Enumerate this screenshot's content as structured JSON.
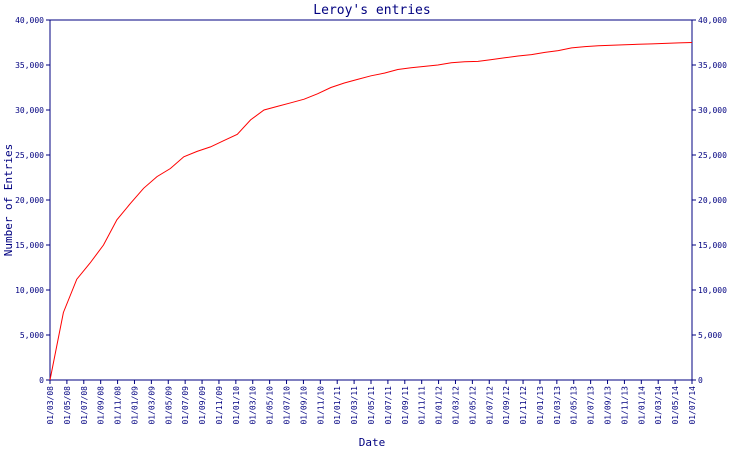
{
  "chart_data": {
    "type": "line",
    "title": "Leroy's entries",
    "xlabel": "Date",
    "ylabel": "Number of Entries",
    "ylim": [
      0,
      40000
    ],
    "y_ticks": [
      0,
      5000,
      10000,
      15000,
      20000,
      25000,
      30000,
      35000,
      40000
    ],
    "y_tick_labels": [
      "0",
      "5,000",
      "10,000",
      "15,000",
      "20,000",
      "25,000",
      "30,000",
      "35,000",
      "40,000"
    ],
    "x_tick_labels": [
      "01/03/08",
      "01/05/08",
      "01/07/08",
      "01/09/08",
      "01/11/08",
      "01/01/09",
      "01/03/09",
      "01/05/09",
      "01/07/09",
      "01/09/09",
      "01/11/09",
      "01/01/10",
      "01/03/10",
      "01/05/10",
      "01/07/10",
      "01/09/10",
      "01/11/10",
      "01/01/11",
      "01/03/11",
      "01/05/11",
      "01/07/11",
      "01/09/11",
      "01/11/11",
      "01/01/12",
      "01/03/12",
      "01/05/12",
      "01/07/12",
      "01/09/12",
      "01/11/12",
      "01/01/13",
      "01/03/13",
      "01/05/13",
      "01/07/13",
      "01/09/13",
      "01/11/13",
      "01/01/14",
      "01/03/14",
      "01/05/14",
      "01/07/14"
    ],
    "grid": false,
    "right_axis": true,
    "line_color": "#ff0000",
    "axis_color": "#000080",
    "series": [
      {
        "values": [
          0,
          7500,
          11200,
          13000,
          15000,
          17800,
          19600,
          21300,
          22600,
          23500,
          24800,
          25400,
          25900,
          26600,
          27300,
          28900,
          30000,
          30400,
          30800,
          31200,
          31800,
          32500,
          33000,
          33400,
          33800,
          34100,
          34500,
          34700,
          34850,
          35000,
          35250,
          35350,
          35400,
          35600,
          35800,
          36000,
          36150,
          36400,
          36600,
          36900,
          37050,
          37150,
          37200,
          37250,
          37300,
          37350,
          37400,
          37450,
          37500
        ]
      }
    ]
  },
  "colors": {
    "background": "#ffffff",
    "axis": "#000080",
    "line": "#ff0000"
  }
}
